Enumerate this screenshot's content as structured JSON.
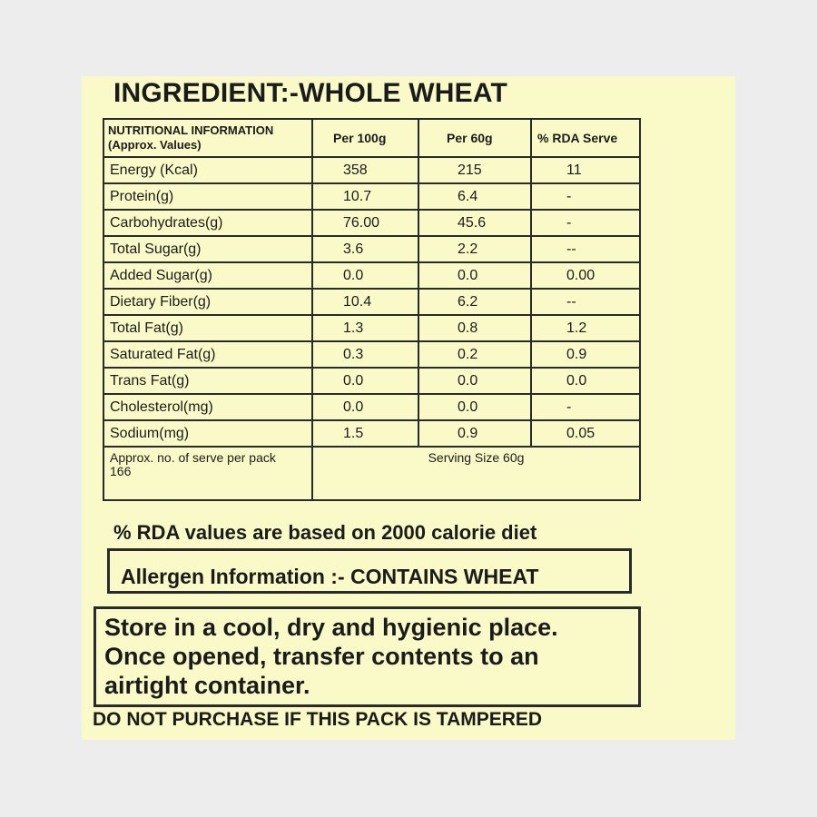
{
  "ingredient_title": "INGREDIENT:-WHOLE WHEAT",
  "table": {
    "headers": [
      "NUTRITIONAL INFORMATION",
      "(Approx. Values)",
      "Per 100g",
      "Per 60g",
      "% RDA Serve"
    ],
    "rows": [
      {
        "nutrient": "Energy (Kcal)",
        "per100": "358",
        "per60": "215",
        "rda": "11"
      },
      {
        "nutrient": "Protein(g)",
        "per100": "10.7",
        "per60": "6.4",
        "rda": "-"
      },
      {
        "nutrient": "Carbohydrates(g)",
        "per100": "76.00",
        "per60": "45.6",
        "rda": "-"
      },
      {
        "nutrient": "Total Sugar(g)",
        "per100": "3.6",
        "per60": "2.2",
        "rda": "--"
      },
      {
        "nutrient": "Added Sugar(g)",
        "per100": "0.0",
        "per60": "0.0",
        "rda": "0.00"
      },
      {
        "nutrient": "Dietary Fiber(g)",
        "per100": "10.4",
        "per60": "6.2",
        "rda": "--"
      },
      {
        "nutrient": "Total Fat(g)",
        "per100": "1.3",
        "per60": "0.8",
        "rda": "1.2"
      },
      {
        "nutrient": "Saturated Fat(g)",
        "per100": "0.3",
        "per60": "0.2",
        "rda": "0.9"
      },
      {
        "nutrient": "Trans Fat(g)",
        "per100": "0.0",
        "per60": "0.0",
        "rda": "0.0"
      },
      {
        "nutrient": "Cholesterol(mg)",
        "per100": "0.0",
        "per60": "0.0",
        "rda": "-"
      },
      {
        "nutrient": "Sodium(mg)",
        "per100": "1.5",
        "per60": "0.9",
        "rda": "0.05"
      }
    ],
    "serve_label": "Approx. no. of serve per pack",
    "serve_count": "166",
    "serving_size": "Serving Size 60g"
  },
  "rda_note": "% RDA values are based on 2000 calorie diet",
  "allergen": "Allergen Information :- CONTAINS WHEAT",
  "storage_lines": [
    "Store in a cool, dry and hygienic place.",
    "Once opened, transfer contents to an",
    "airtight container."
  ],
  "tamper_note": "DO NOT PURCHASE IF THIS PACK IS TAMPERED",
  "colors": {
    "panel": "#fafac8",
    "background": "#ededed",
    "ink": "#1b1b1b"
  }
}
